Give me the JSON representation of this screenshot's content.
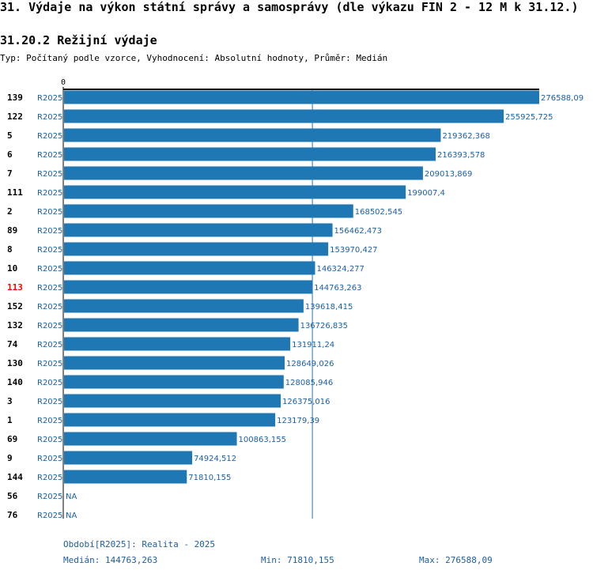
{
  "header": {
    "title": "31. Výdaje na výkon státní správy a samosprávy (dle výkazu FIN 2 - 12 M k 31.12.)",
    "section": "31.20.2 Režijní výdaje",
    "subtitle": "Typ: Počítaný podle vzorce, Vyhodnocení: Absolutní hodnoty, Průměr: Medián"
  },
  "colors": {
    "bar": "#1f77b4",
    "label": "#1f5fa0",
    "highlight": "#ff0000",
    "text": "#000000"
  },
  "chart_data": {
    "type": "bar",
    "orientation": "horizontal",
    "axis_zero_label": "0",
    "xlim": [
      0,
      276588.09
    ],
    "median_line": 144763.263,
    "highlight_category": "113",
    "categories": [
      "139",
      "122",
      "5",
      "6",
      "7",
      "111",
      "2",
      "89",
      "8",
      "10",
      "113",
      "152",
      "132",
      "74",
      "130",
      "140",
      "3",
      "1",
      "69",
      "9",
      "144",
      "56",
      "76"
    ],
    "period_labels": [
      "R2025",
      "R2025",
      "R2025",
      "R2025",
      "R2025",
      "R2025",
      "R2025",
      "R2025",
      "R2025",
      "R2025",
      "R2025",
      "R2025",
      "R2025",
      "R2025",
      "R2025",
      "R2025",
      "R2025",
      "R2025",
      "R2025",
      "R2025",
      "R2025",
      "R2025",
      "R2025"
    ],
    "values": [
      276588.09,
      255925.725,
      219362.368,
      216393.578,
      209013.869,
      199007.4,
      168502.545,
      156462.473,
      153970.427,
      146324.277,
      144763.263,
      139618.415,
      136726.835,
      131911.24,
      128649.026,
      128085.946,
      126375.016,
      123179.39,
      100863.155,
      74924.512,
      71810.155,
      null,
      null
    ],
    "value_labels": [
      "276588,09",
      "255925,725",
      "219362,368",
      "216393,578",
      "209013,869",
      "199007,4",
      "168502,545",
      "156462,473",
      "153970,427",
      "146324,277",
      "144763,263",
      "139618,415",
      "136726,835",
      "131911,24",
      "128649,026",
      "128085,946",
      "126375,016",
      "123179,39",
      "100863,155",
      "74924,512",
      "71810,155",
      "NA",
      "NA"
    ]
  },
  "footer": {
    "period": "Období[R2025]: Realita - 2025",
    "median": "Medián: 144763,263",
    "min": "Min: 71810,155",
    "max": "Max: 276588,09"
  }
}
